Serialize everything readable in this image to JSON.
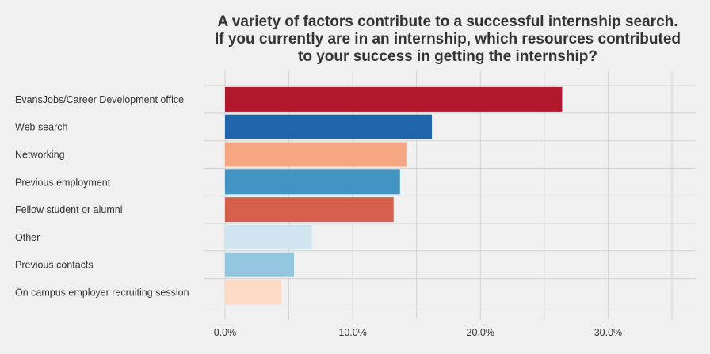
{
  "chart_data": {
    "type": "bar",
    "orientation": "horizontal",
    "title": [
      "A variety of factors contribute to a successful internship search.",
      "If you currently are in an internship, which resources contributed",
      "to your success in getting the internship?"
    ],
    "categories": [
      "EvansJobs/Career Development office",
      "Web search",
      "Networking",
      "Previous employment",
      "Fellow student or alumni",
      "Other",
      "Previous contacts",
      "On campus employer recruiting session"
    ],
    "values": [
      26.4,
      16.2,
      14.2,
      13.7,
      13.2,
      6.8,
      5.4,
      4.4
    ],
    "colors": [
      "#b2182b",
      "#2166ac",
      "#f4a582",
      "#4393c3",
      "#d6604d",
      "#d1e5f0",
      "#92c5de",
      "#fddbc7"
    ],
    "xlim": [
      0,
      36.8
    ],
    "xticks": [
      0,
      10,
      20,
      30
    ],
    "xtick_labels": [
      "0.0%",
      "10.0%",
      "20.0%",
      "30.0%"
    ],
    "xlabel": "",
    "ylabel": "",
    "grid": true,
    "legend": "none",
    "background": "#f0f0f0"
  }
}
